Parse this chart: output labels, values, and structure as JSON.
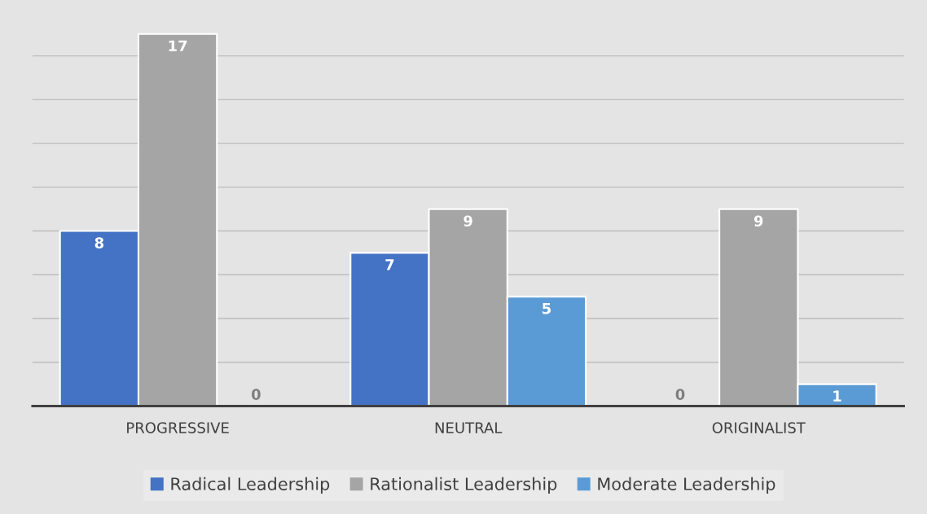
{
  "chart_data": {
    "type": "bar",
    "categories": [
      "PROGRESSIVE",
      "NEUTRAL",
      "ORIGINALIST"
    ],
    "series": [
      {
        "name": "Radical Leadership",
        "color": "#4472c4",
        "values": [
          8,
          7,
          0
        ]
      },
      {
        "name": "Rationalist Leadership",
        "color": "#a5a5a5",
        "values": [
          17,
          9,
          9
        ]
      },
      {
        "name": "Moderate Leadership",
        "color": "#5b9bd5",
        "values": [
          0,
          5,
          1
        ]
      }
    ],
    "tick_labels": "x",
    "grid": "y",
    "data_labels": true,
    "legend": "bottom"
  }
}
